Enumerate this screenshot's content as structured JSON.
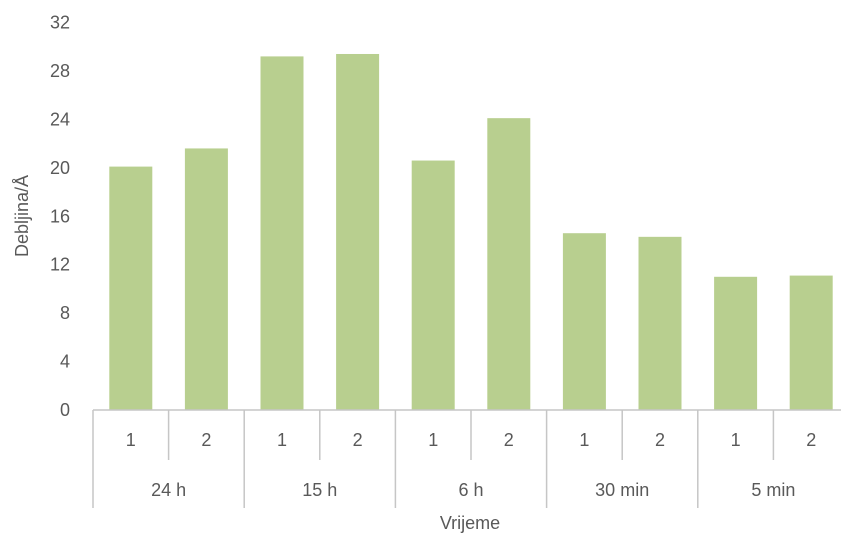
{
  "chart_data": {
    "type": "bar",
    "xlabel": "Vrijeme",
    "ylabel": "Debljina/Å",
    "ylim": [
      0,
      32
    ],
    "yticks": [
      "0",
      "4",
      "8",
      "12",
      "16",
      "20",
      "24",
      "28",
      "32"
    ],
    "grid": false,
    "legend": "none",
    "bar_color": "#b8cf8f",
    "axis_color": "#c6c6c6",
    "groups": [
      {
        "label": "24 h",
        "subcategories": [
          "1",
          "2"
        ],
        "values": [
          20.1,
          21.6
        ]
      },
      {
        "label": "15 h",
        "subcategories": [
          "1",
          "2"
        ],
        "values": [
          29.2,
          29.4
        ]
      },
      {
        "label": "6 h",
        "subcategories": [
          "1",
          "2"
        ],
        "values": [
          20.6,
          24.1
        ]
      },
      {
        "label": "30 min",
        "subcategories": [
          "1",
          "2"
        ],
        "values": [
          14.6,
          14.3
        ]
      },
      {
        "label": "5 min",
        "subcategories": [
          "1",
          "2"
        ],
        "values": [
          11.0,
          11.1
        ]
      }
    ]
  }
}
